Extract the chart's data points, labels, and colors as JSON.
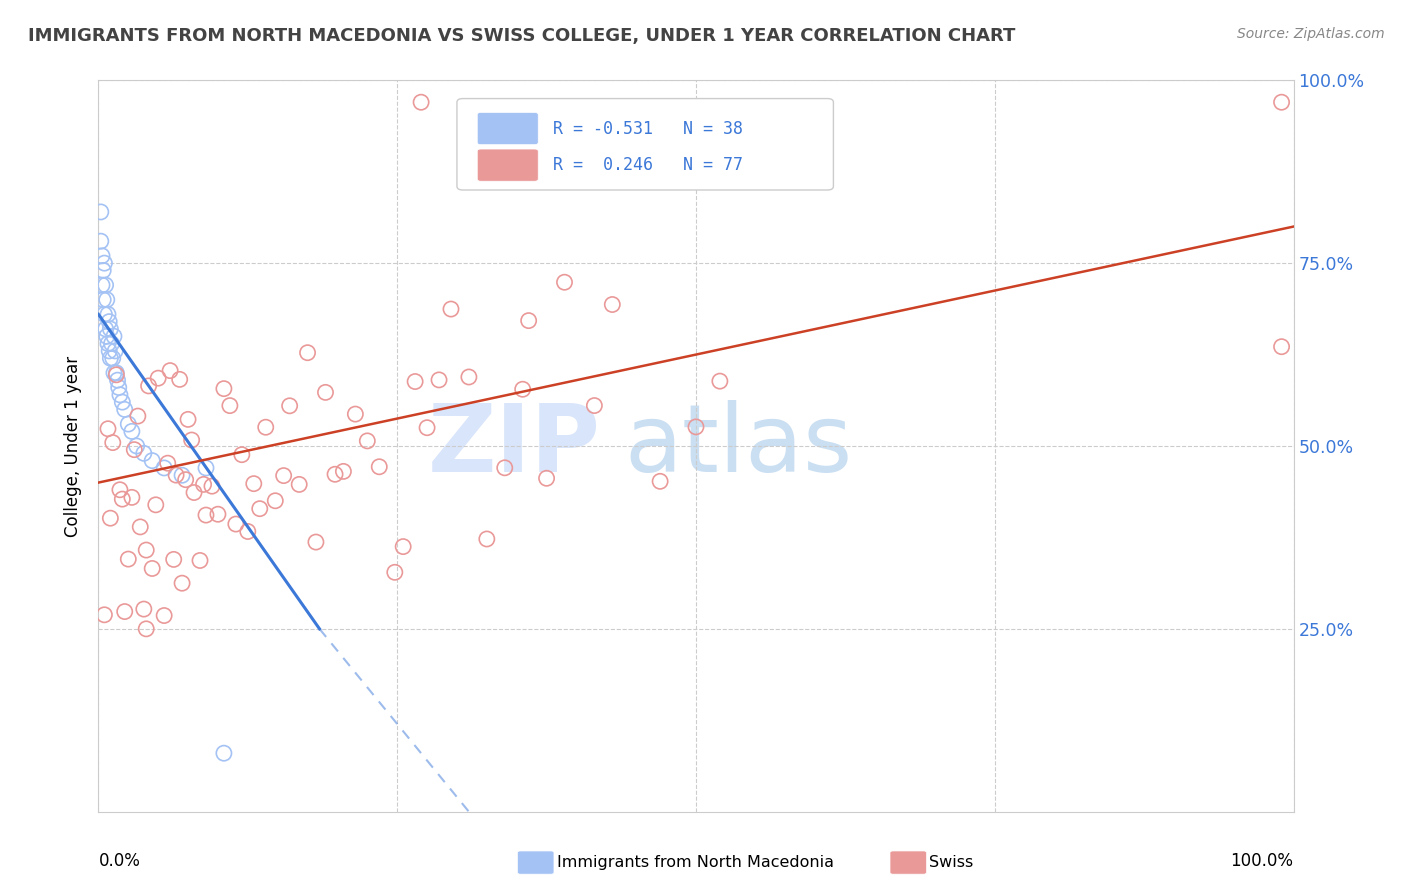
{
  "title": "IMMIGRANTS FROM NORTH MACEDONIA VS SWISS COLLEGE, UNDER 1 YEAR CORRELATION CHART",
  "source": "Source: ZipAtlas.com",
  "ylabel": "College, Under 1 year",
  "legend_text1": "R = -0.531   N = 38",
  "legend_text2": "R =  0.246   N = 77",
  "blue_color": "#a4c2f4",
  "pink_color": "#ea9999",
  "blue_line_color": "#3c78d8",
  "pink_line_color": "#cc4125",
  "dash_color": "#a4c2f4",
  "watermark_color1": "#c9daf8",
  "watermark_color2": "#c9daf8",
  "right_axis_color": "#3c78d8",
  "grid_color": "#cccccc",
  "title_color": "#434343",
  "source_color": "#888888"
}
